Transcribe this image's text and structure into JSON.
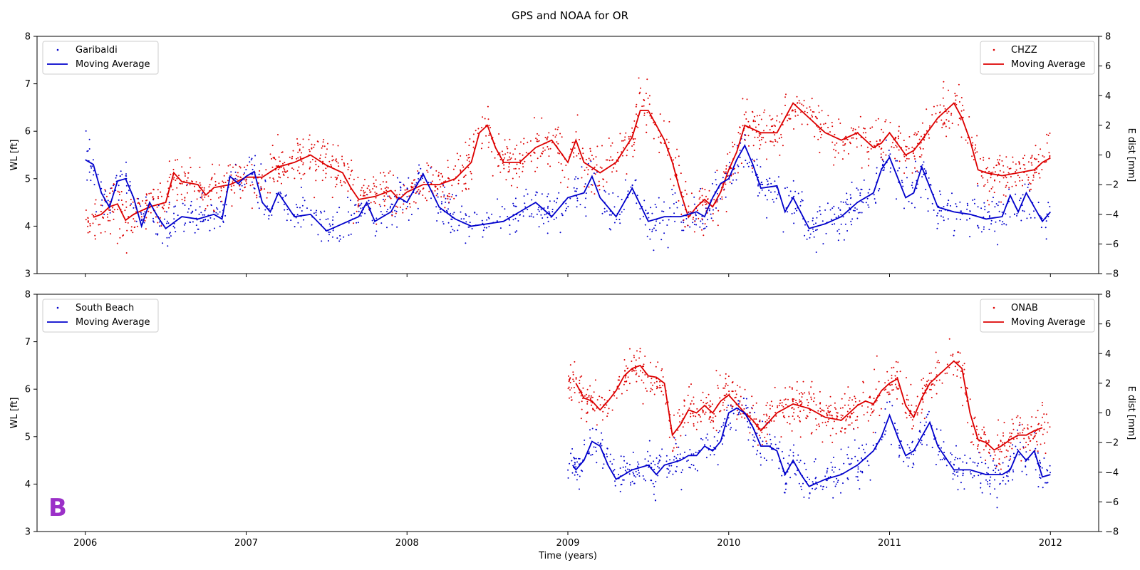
{
  "chart_data": {
    "title": "GPS and NOAA for OR",
    "xlabel": "Time (years)",
    "xlim": [
      2005.7,
      2012.3
    ],
    "xticks": [
      2006,
      2007,
      2008,
      2009,
      2010,
      2011,
      2012
    ],
    "xtick_labels": [
      "2006",
      "2007",
      "2008",
      "2009",
      "2010",
      "2011",
      "2012"
    ],
    "colors": {
      "left_series": "#0000cc",
      "right_series": "#dd0000",
      "panel_letter": "#9b30c8"
    },
    "panels": [
      {
        "type": "scatter",
        "left_axis": {
          "label": "WL [ft]",
          "ylim": [
            3,
            8
          ],
          "ticks": [
            3,
            4,
            5,
            6,
            7,
            8
          ],
          "tick_labels": [
            "3",
            "4",
            "5",
            "6",
            "7",
            "8"
          ]
        },
        "right_axis": {
          "label": "E dist [mm]",
          "ylim": [
            -8,
            8
          ],
          "ticks": [
            -8,
            -6,
            -4,
            -2,
            0,
            2,
            4,
            6,
            8
          ],
          "tick_labels": [
            "−8",
            "−6",
            "−4",
            "−2",
            "0",
            "2",
            "4",
            "6",
            "8"
          ]
        },
        "left_legend": {
          "placement": "upper-left",
          "scatter_name": "Garibaldi",
          "line_name": "Moving Average"
        },
        "right_legend": {
          "placement": "upper-right",
          "scatter_name": "CHZZ",
          "line_name": "Moving Average"
        },
        "left_ma": {
          "x": [
            2006.0,
            2006.05,
            2006.1,
            2006.15,
            2006.2,
            2006.25,
            2006.3,
            2006.35,
            2006.4,
            2006.45,
            2006.5,
            2006.6,
            2006.7,
            2006.8,
            2006.85,
            2006.9,
            2006.95,
            2007.0,
            2007.05,
            2007.1,
            2007.15,
            2007.2,
            2007.3,
            2007.4,
            2007.5,
            2007.6,
            2007.7,
            2007.75,
            2007.8,
            2007.9,
            2007.95,
            2008.0,
            2008.05,
            2008.1,
            2008.2,
            2008.3,
            2008.4,
            2008.5,
            2008.6,
            2008.7,
            2008.8,
            2008.9,
            2009.0,
            2009.1,
            2009.15,
            2009.2,
            2009.3,
            2009.4,
            2009.5,
            2009.6,
            2009.7,
            2009.8,
            2009.85,
            2009.9,
            2009.95,
            2010.0,
            2010.05,
            2010.1,
            2010.15,
            2010.2,
            2010.3,
            2010.35,
            2010.4,
            2010.5,
            2010.6,
            2010.7,
            2010.8,
            2010.9,
            2010.95,
            2011.0,
            2011.1,
            2011.15,
            2011.2,
            2011.3,
            2011.4,
            2011.5,
            2011.6,
            2011.7,
            2011.75,
            2011.8,
            2011.85,
            2011.9,
            2011.95,
            2012.0
          ],
          "y": [
            5.4,
            5.3,
            4.7,
            4.4,
            4.95,
            5.0,
            4.6,
            4.0,
            4.5,
            4.2,
            3.95,
            4.2,
            4.15,
            4.25,
            4.15,
            5.05,
            4.9,
            5.05,
            5.15,
            4.5,
            4.3,
            4.7,
            4.2,
            4.25,
            3.9,
            4.05,
            4.2,
            4.5,
            4.1,
            4.3,
            4.6,
            4.5,
            4.8,
            5.1,
            4.4,
            4.15,
            4.0,
            4.05,
            4.1,
            4.3,
            4.5,
            4.2,
            4.6,
            4.7,
            5.05,
            4.6,
            4.2,
            4.8,
            4.1,
            4.2,
            4.2,
            4.3,
            4.2,
            4.6,
            4.9,
            5.0,
            5.4,
            5.7,
            5.3,
            4.8,
            4.85,
            4.3,
            4.6,
            3.95,
            4.05,
            4.2,
            4.5,
            4.7,
            5.2,
            5.45,
            4.6,
            4.7,
            5.25,
            4.4,
            4.3,
            4.25,
            4.15,
            4.2,
            4.65,
            4.3,
            4.7,
            4.4,
            4.1,
            4.3
          ]
        },
        "right_ma": {
          "x": [
            2006.05,
            2006.1,
            2006.15,
            2006.2,
            2006.25,
            2006.3,
            2006.4,
            2006.5,
            2006.55,
            2006.6,
            2006.7,
            2006.75,
            2006.8,
            2006.9,
            2007.0,
            2007.1,
            2007.2,
            2007.3,
            2007.4,
            2007.5,
            2007.6,
            2007.65,
            2007.7,
            2007.8,
            2007.9,
            2007.95,
            2008.0,
            2008.1,
            2008.2,
            2008.3,
            2008.4,
            2008.45,
            2008.5,
            2008.55,
            2008.6,
            2008.7,
            2008.8,
            2008.9,
            2009.0,
            2009.05,
            2009.1,
            2009.2,
            2009.3,
            2009.4,
            2009.45,
            2009.5,
            2009.6,
            2009.65,
            2009.7,
            2009.75,
            2009.8,
            2009.85,
            2009.9,
            2009.95,
            2010.0,
            2010.05,
            2010.1,
            2010.2,
            2010.3,
            2010.4,
            2010.45,
            2010.5,
            2010.6,
            2010.7,
            2010.8,
            2010.9,
            2010.95,
            2011.0,
            2011.1,
            2011.15,
            2011.2,
            2011.3,
            2011.35,
            2011.4,
            2011.45,
            2011.5,
            2011.55,
            2011.6,
            2011.7,
            2011.8,
            2011.9,
            2011.95,
            2012.0
          ],
          "y": [
            -4.2,
            -4.0,
            -3.5,
            -3.3,
            -4.4,
            -4.0,
            -3.5,
            -3.2,
            -1.2,
            -1.8,
            -2.0,
            -2.7,
            -2.2,
            -2.0,
            -1.5,
            -1.5,
            -0.8,
            -0.5,
            0.0,
            -0.7,
            -1.2,
            -2.2,
            -3.0,
            -2.8,
            -2.4,
            -3.0,
            -2.5,
            -2.0,
            -2.0,
            -1.6,
            -0.5,
            1.5,
            2.0,
            0.5,
            -0.5,
            -0.5,
            0.5,
            1.0,
            -0.5,
            1.0,
            -0.5,
            -1.2,
            -0.5,
            1.2,
            3.0,
            3.0,
            1.0,
            -0.5,
            -2.5,
            -4.2,
            -3.5,
            -3.0,
            -3.5,
            -2.5,
            -1.0,
            0.2,
            2.0,
            1.5,
            1.5,
            3.5,
            3.0,
            2.5,
            1.5,
            1.0,
            1.5,
            0.5,
            0.8,
            1.5,
            0.0,
            0.3,
            1.0,
            2.5,
            3.0,
            3.5,
            2.5,
            1.0,
            -1.0,
            -1.2,
            -1.4,
            -1.2,
            -1.0,
            -0.5,
            -0.2
          ]
        },
        "scatter_left": {
          "x_range": [
            2006.0,
            2012.0
          ],
          "spread": 0.45,
          "count": 1100
        },
        "scatter_right": {
          "x_range": [
            2006.0,
            2012.0
          ],
          "spread": 1.6,
          "count": 1600
        }
      },
      {
        "type": "scatter",
        "panel_letter": "B",
        "left_axis": {
          "label": "WL [ft]",
          "ylim": [
            3,
            8
          ],
          "ticks": [
            3,
            4,
            5,
            6,
            7,
            8
          ],
          "tick_labels": [
            "3",
            "4",
            "5",
            "6",
            "7",
            "8"
          ]
        },
        "right_axis": {
          "label": "E dist [mm]",
          "ylim": [
            -8,
            8
          ],
          "ticks": [
            -8,
            -6,
            -4,
            -2,
            0,
            2,
            4,
            6,
            8
          ],
          "tick_labels": [
            "−8",
            "−6",
            "−4",
            "−2",
            "0",
            "2",
            "4",
            "6",
            "8"
          ]
        },
        "left_legend": {
          "placement": "upper-left",
          "scatter_name": "South Beach",
          "line_name": "Moving Average"
        },
        "right_legend": {
          "placement": "upper-right",
          "scatter_name": "ONAB",
          "line_name": "Moving Average"
        },
        "left_ma": {
          "x": [
            2009.03,
            2009.05,
            2009.1,
            2009.15,
            2009.2,
            2009.25,
            2009.3,
            2009.35,
            2009.4,
            2009.5,
            2009.55,
            2009.6,
            2009.7,
            2009.75,
            2009.8,
            2009.85,
            2009.9,
            2009.95,
            2010.0,
            2010.05,
            2010.1,
            2010.15,
            2010.2,
            2010.25,
            2010.3,
            2010.35,
            2010.4,
            2010.45,
            2010.5,
            2010.6,
            2010.7,
            2010.8,
            2010.9,
            2010.95,
            2011.0,
            2011.05,
            2011.1,
            2011.15,
            2011.2,
            2011.25,
            2011.3,
            2011.4,
            2011.5,
            2011.6,
            2011.7,
            2011.75,
            2011.8,
            2011.85,
            2011.9,
            2011.95,
            2012.0
          ],
          "y": [
            4.4,
            4.3,
            4.5,
            4.9,
            4.8,
            4.4,
            4.1,
            4.2,
            4.3,
            4.4,
            4.2,
            4.4,
            4.5,
            4.6,
            4.6,
            4.8,
            4.7,
            4.9,
            5.5,
            5.6,
            5.5,
            5.2,
            4.8,
            4.8,
            4.7,
            4.2,
            4.5,
            4.2,
            3.95,
            4.1,
            4.2,
            4.4,
            4.7,
            5.0,
            5.45,
            5.0,
            4.6,
            4.7,
            5.0,
            5.3,
            4.8,
            4.3,
            4.3,
            4.2,
            4.2,
            4.3,
            4.7,
            4.5,
            4.7,
            4.15,
            4.2
          ]
        },
        "right_ma": {
          "x": [
            2009.05,
            2009.1,
            2009.15,
            2009.2,
            2009.25,
            2009.3,
            2009.35,
            2009.4,
            2009.45,
            2009.5,
            2009.55,
            2009.6,
            2009.65,
            2009.7,
            2009.75,
            2009.8,
            2009.85,
            2009.9,
            2009.95,
            2010.0,
            2010.05,
            2010.1,
            2010.15,
            2010.2,
            2010.3,
            2010.4,
            2010.5,
            2010.6,
            2010.7,
            2010.8,
            2010.85,
            2010.9,
            2010.95,
            2011.0,
            2011.05,
            2011.1,
            2011.15,
            2011.2,
            2011.25,
            2011.3,
            2011.35,
            2011.4,
            2011.45,
            2011.5,
            2011.55,
            2011.6,
            2011.65,
            2011.7,
            2011.75,
            2011.8,
            2011.85,
            2011.9,
            2011.95
          ],
          "y": [
            2.0,
            1.0,
            0.8,
            0.2,
            0.8,
            1.5,
            2.5,
            3.0,
            3.2,
            2.5,
            2.4,
            2.0,
            -1.5,
            -0.8,
            0.2,
            0.0,
            0.5,
            0.0,
            0.8,
            1.2,
            0.6,
            0.0,
            -0.5,
            -1.2,
            0.0,
            0.6,
            0.3,
            -0.3,
            -0.5,
            0.5,
            0.8,
            0.6,
            1.5,
            2.0,
            2.3,
            0.5,
            -0.3,
            1.0,
            2.0,
            2.5,
            3.0,
            3.5,
            3.0,
            0.0,
            -1.8,
            -2.0,
            -2.5,
            -2.2,
            -1.8,
            -1.5,
            -1.5,
            -1.2,
            -1.0
          ]
        },
        "scatter_left": {
          "x_range": [
            2009.0,
            2012.0
          ],
          "spread": 0.45,
          "count": 650
        },
        "scatter_right": {
          "x_range": [
            2009.0,
            2012.0
          ],
          "spread": 1.5,
          "count": 900
        }
      }
    ]
  }
}
